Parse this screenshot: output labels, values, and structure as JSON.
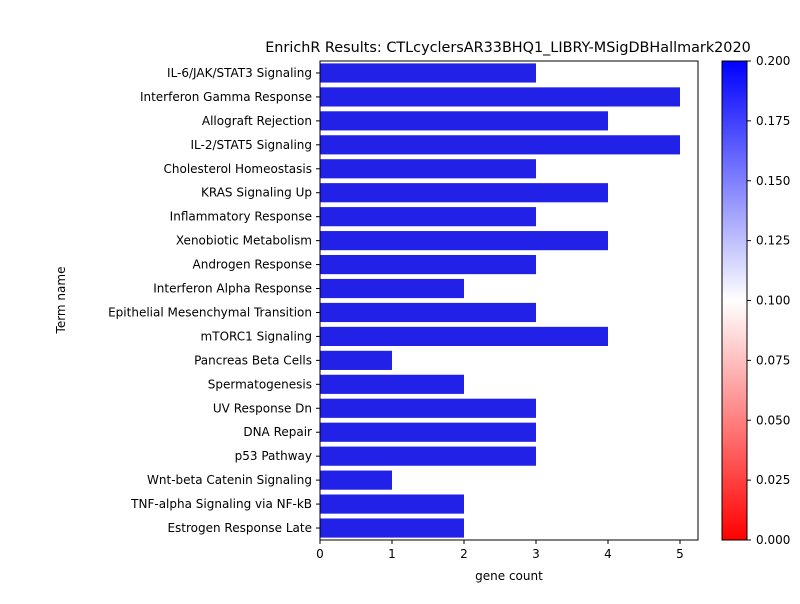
{
  "chart_data": {
    "type": "bar",
    "orientation": "horizontal",
    "title": "EnrichR Results: CTLcyclersAR33BHQ1_LIBRY-MSigDBHallmark2020",
    "xlabel": "gene count",
    "ylabel": "Term name",
    "xlim": [
      0,
      5.25
    ],
    "xticks": [
      "0",
      "1",
      "2",
      "3",
      "4",
      "5"
    ],
    "categories": [
      "IL-6/JAK/STAT3 Signaling",
      "Interferon Gamma Response",
      "Allograft Rejection",
      "IL-2/STAT5 Signaling",
      "Cholesterol Homeostasis",
      "KRAS Signaling Up",
      "Inflammatory Response",
      "Xenobiotic Metabolism",
      "Androgen Response",
      "Interferon Alpha Response",
      "Epithelial Mesenchymal Transition",
      "mTORC1 Signaling",
      "Pancreas Beta Cells",
      "Spermatogenesis",
      "UV Response Dn",
      "DNA Repair",
      "p53 Pathway",
      "Wnt-beta Catenin Signaling",
      "TNF-alpha Signaling via NF-kB",
      "Estrogen Response Late"
    ],
    "values": [
      3,
      5,
      4,
      5,
      3,
      4,
      3,
      4,
      3,
      2,
      3,
      4,
      1,
      2,
      3,
      3,
      3,
      1,
      2,
      2
    ],
    "bar_color": "#2121e8",
    "colorbar": {
      "range": [
        0.0,
        0.2
      ],
      "ticks": [
        "0.000",
        "0.025",
        "0.050",
        "0.075",
        "0.100",
        "0.125",
        "0.150",
        "0.175",
        "0.200"
      ],
      "colors": [
        "#ff0000",
        "#ffffff",
        "#0000ff"
      ]
    },
    "grid": false,
    "legend": "none"
  }
}
